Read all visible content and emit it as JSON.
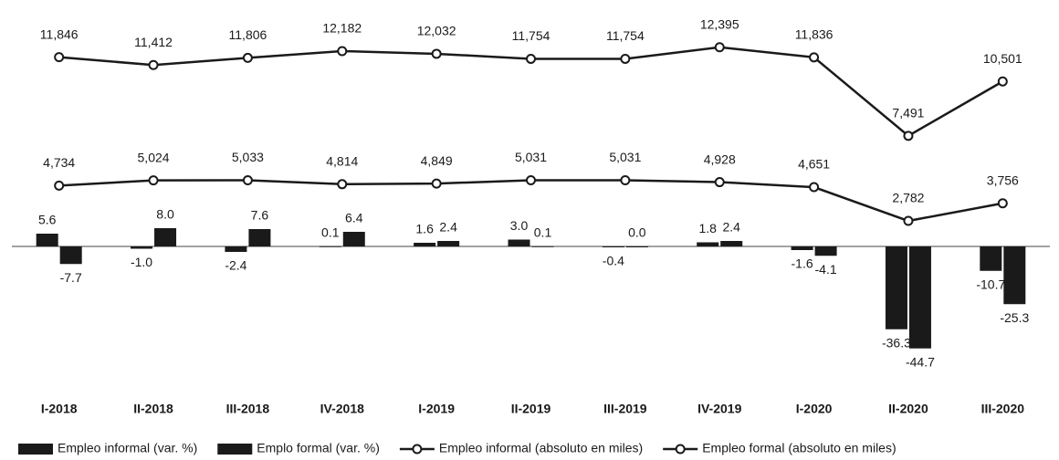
{
  "chart_data": {
    "type": "bar-line",
    "categories": [
      "I-2018",
      "II-2018",
      "III-2018",
      "IV-2018",
      "I-2019",
      "II-2019",
      "III-2019",
      "IV-2019",
      "I-2020",
      "II-2020",
      "III-2020"
    ],
    "ylim": [
      -52,
      100
    ],
    "y2lim": [
      -5200,
      14000
    ],
    "series": [
      {
        "name": "Empleo informal (var. %)",
        "type": "bar",
        "color": "#1a1a1a",
        "values": [
          5.6,
          -1.0,
          -2.4,
          0.1,
          1.6,
          3.0,
          -0.4,
          1.8,
          -1.6,
          -36.3,
          -10.7
        ],
        "value_labels": [
          "5.6",
          "-1.0",
          "-2.4",
          "0.1",
          "1.6",
          "3.0",
          "-0.4",
          "1.8",
          "-1.6",
          "-36.3",
          "-10.7"
        ]
      },
      {
        "name": "Emplo formal (var. %)",
        "type": "bar",
        "color": "#1a1a1a",
        "values": [
          -7.7,
          8.0,
          7.6,
          6.4,
          2.4,
          0.1,
          0.0,
          2.4,
          -4.1,
          -44.7,
          -25.3
        ],
        "value_labels": [
          "-7.7",
          "8.0",
          "7.6",
          "6.4",
          "2.4",
          "0.1",
          "0.0",
          "2.4",
          "-4.1",
          "-44.7",
          "-25.3"
        ]
      },
      {
        "name": "Empleo informal (absoluto en miles)",
        "type": "line",
        "axis": "y2",
        "color": "#1a1a1a",
        "values": [
          11846,
          11412,
          11806,
          12182,
          12032,
          11754,
          11754,
          12395,
          11836,
          7491,
          10501
        ],
        "value_labels": [
          "11,846",
          "11,412",
          "11,806",
          "12,182",
          "12,032",
          "11,754",
          "11,754",
          "12,395",
          "11,836",
          "7,491",
          "10,501"
        ]
      },
      {
        "name": "Empleo formal (absoluto en miles)",
        "type": "line",
        "axis": "y2",
        "color": "#1a1a1a",
        "values": [
          4734,
          5024,
          5033,
          4814,
          4849,
          5031,
          5031,
          4928,
          4651,
          2782,
          3756
        ],
        "value_labels": [
          "4,734",
          "5,024",
          "5,033",
          "4,814",
          "4,849",
          "5,031",
          "5,031",
          "4,928",
          "4,651",
          "2,782",
          "3,756"
        ]
      }
    ]
  }
}
